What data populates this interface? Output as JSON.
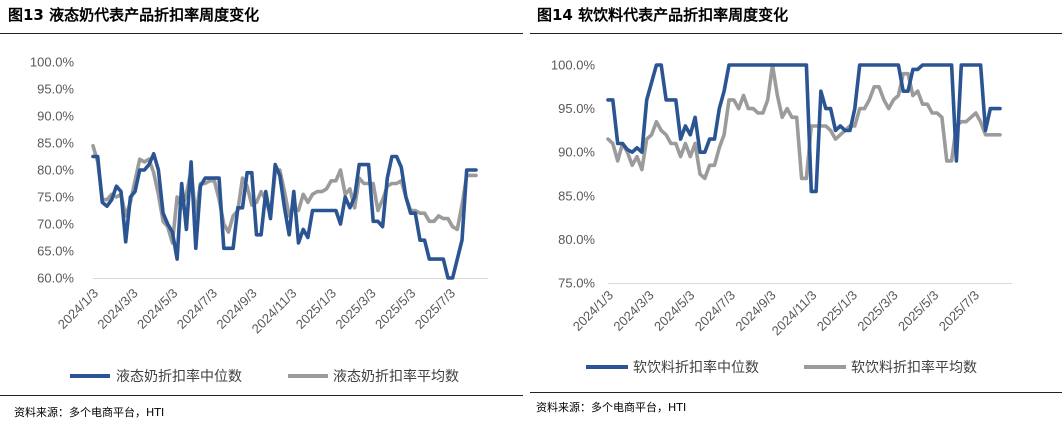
{
  "colors": {
    "median": "#2B5592",
    "average": "#9B9B9B",
    "tick_text": "#595959"
  },
  "charts": [
    {
      "title": "图13 液态奶代表产品折扣率周度变化",
      "source": "资料来源：多个电商平台，HTI",
      "chart_data": {
        "type": "line",
        "title": "图13 液态奶代表产品折扣率周度变化",
        "xlabel": "",
        "ylabel": "",
        "ylim": [
          60,
          100
        ],
        "yticks": [
          "100.0%",
          "95.0%",
          "90.0%",
          "85.0%",
          "80.0%",
          "75.0%",
          "70.0%",
          "65.0%",
          "60.0%"
        ],
        "xticks": [
          "2024/1/3",
          "2024/3/3",
          "2024/5/3",
          "2024/7/3",
          "2024/9/3",
          "2024/11/3",
          "2025/1/3",
          "2025/3/3",
          "2025/5/3",
          "2025/7/3"
        ],
        "grid": false,
        "legend": "bottom",
        "series": [
          {
            "name": "液态奶折扣率中位数",
            "values": [
              82.5,
              82.5,
              74.0,
              73.3,
              74.5,
              77.0,
              76.0,
              66.7,
              75.0,
              76.0,
              80.0,
              80.0,
              81.0,
              83.0,
              80.0,
              72.0,
              70.0,
              68.5,
              63.5,
              77.5,
              69.0,
              81.5,
              65.5,
              77.0,
              78.5,
              78.5,
              78.5,
              78.5,
              65.5,
              65.5,
              65.5,
              73.0,
              73.0,
              79.5,
              79.5,
              68.0,
              68.0,
              76.0,
              71.0,
              81.0,
              79.0,
              73.0,
              68.0,
              76.0,
              66.5,
              69.0,
              67.5,
              72.5,
              72.5,
              72.5,
              72.5,
              72.5,
              72.5,
              70.0,
              75.0,
              73.0,
              75.0,
              81.0,
              81.0,
              81.0,
              70.5,
              70.5,
              69.5,
              78.5,
              82.5,
              82.5,
              80.5,
              75.0,
              72.0,
              72.0,
              67.0,
              67.0,
              63.5,
              63.5,
              63.5,
              63.5,
              60.0,
              60.0,
              63.5,
              67.0,
              80.0,
              80.0,
              80.0
            ]
          },
          {
            "name": "液态奶折扣率平均数",
            "values": [
              84.5,
              81.5,
              74.5,
              74.5,
              75.5,
              75.0,
              75.5,
              71.5,
              74.0,
              78.0,
              82.0,
              81.5,
              82.0,
              79.5,
              75.5,
              70.5,
              69.5,
              66.5,
              75.0,
              73.0,
              75.5,
              80.0,
              71.5,
              77.5,
              77.5,
              78.0,
              78.0,
              74.5,
              70.0,
              68.5,
              71.5,
              72.5,
              78.5,
              77.0,
              73.5,
              74.0,
              76.0,
              74.5,
              71.5,
              79.5,
              80.0,
              76.0,
              71.5,
              73.0,
              72.5,
              75.5,
              74.0,
              75.5,
              76.0,
              76.0,
              76.5,
              78.0,
              78.0,
              80.0,
              75.5,
              76.5,
              73.0,
              78.5,
              77.5,
              77.5,
              77.5,
              72.5,
              74.5,
              77.0,
              77.5,
              77.5,
              78.0,
              75.0,
              72.5,
              72.5,
              72.0,
              72.0,
              70.5,
              70.5,
              71.5,
              71.0,
              71.0,
              69.5,
              69.0,
              73.5,
              79.0,
              79.0,
              79.0
            ]
          }
        ]
      }
    },
    {
      "title": "图14 软饮料代表产品折扣率周度变化",
      "source": "资料来源：多个电商平台，HTI",
      "chart_data": {
        "type": "line",
        "title": "图14 软饮料代表产品折扣率周度变化",
        "xlabel": "",
        "ylabel": "",
        "ylim": [
          75,
          100
        ],
        "yticks": [
          "100.0%",
          "95.0%",
          "90.0%",
          "85.0%",
          "80.0%",
          "75.0%"
        ],
        "xticks": [
          "2024/1/3",
          "2024/3/3",
          "2024/5/3",
          "2024/7/3",
          "2024/9/3",
          "2024/11/3",
          "2025/1/3",
          "2025/3/3",
          "2025/5/3",
          "2025/7/3"
        ],
        "grid": false,
        "legend": "bottom",
        "series": [
          {
            "name": "软饮料折扣率中位数",
            "values": [
              96.0,
              96.0,
              91.0,
              91.0,
              90.3,
              90.0,
              90.5,
              90.0,
              96.0,
              98.0,
              100.0,
              100.0,
              96.0,
              96.0,
              96.0,
              91.5,
              93.0,
              92.0,
              94.0,
              90.0,
              90.0,
              91.5,
              91.5,
              95.0,
              97.0,
              100.0,
              100.0,
              100.0,
              100.0,
              100.0,
              100.0,
              100.0,
              100.0,
              100.0,
              100.0,
              100.0,
              100.0,
              100.0,
              100.0,
              100.0,
              100.0,
              100.0,
              85.5,
              85.5,
              97.0,
              95.0,
              95.0,
              92.5,
              93.0,
              92.5,
              92.5,
              95.0,
              100.0,
              100.0,
              100.0,
              100.0,
              100.0,
              100.0,
              100.0,
              100.0,
              100.0,
              97.0,
              97.0,
              99.5,
              99.5,
              100.0,
              100.0,
              100.0,
              100.0,
              100.0,
              100.0,
              100.0,
              89.0,
              100.0,
              100.0,
              100.0,
              100.0,
              100.0,
              92.5,
              95.0,
              95.0,
              95.0
            ]
          },
          {
            "name": "软饮料折扣率平均数",
            "values": [
              91.5,
              91.0,
              89.0,
              91.0,
              90.0,
              88.5,
              89.5,
              88.0,
              91.5,
              92.0,
              93.5,
              92.5,
              92.0,
              91.0,
              91.0,
              89.5,
              91.0,
              89.5,
              91.0,
              87.5,
              87.0,
              88.5,
              88.5,
              90.5,
              92.0,
              96.0,
              96.0,
              95.0,
              96.5,
              95.0,
              95.0,
              94.5,
              94.5,
              96.0,
              100.0,
              96.5,
              94.0,
              95.0,
              94.0,
              94.0,
              87.0,
              87.0,
              93.0,
              93.0,
              93.0,
              93.0,
              92.5,
              91.5,
              92.0,
              92.5,
              93.0,
              93.0,
              95.0,
              95.0,
              96.0,
              97.5,
              97.5,
              96.0,
              95.0,
              96.0,
              96.5,
              99.0,
              99.0,
              96.5,
              97.0,
              95.5,
              95.5,
              94.5,
              94.5,
              94.0,
              89.0,
              89.0,
              93.0,
              93.5,
              93.5,
              94.0,
              94.5,
              93.5,
              92.0,
              92.0,
              92.0,
              92.0
            ]
          }
        ]
      }
    }
  ]
}
